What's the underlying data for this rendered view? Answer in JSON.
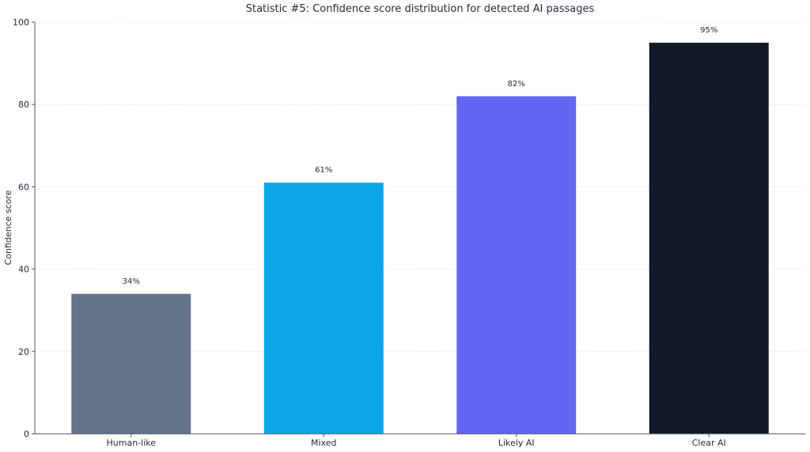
{
  "chart_data": {
    "type": "bar",
    "title": "Statistic #5: Confidence score distribution for detected AI passages",
    "xlabel": "",
    "ylabel": "Confidence score",
    "categories": [
      "Human-like",
      "Mixed",
      "Likely AI",
      "Clear AI"
    ],
    "values": [
      34,
      61,
      82,
      95
    ],
    "data_labels": [
      "34%",
      "61%",
      "82%",
      "95%"
    ],
    "colors": [
      "#64748b",
      "#0ea5e9",
      "#6366f1",
      "#111827"
    ],
    "ylim": [
      0,
      100
    ],
    "yticks": [
      0,
      20,
      40,
      60,
      80,
      100
    ],
    "grid": true,
    "legend": "none"
  }
}
